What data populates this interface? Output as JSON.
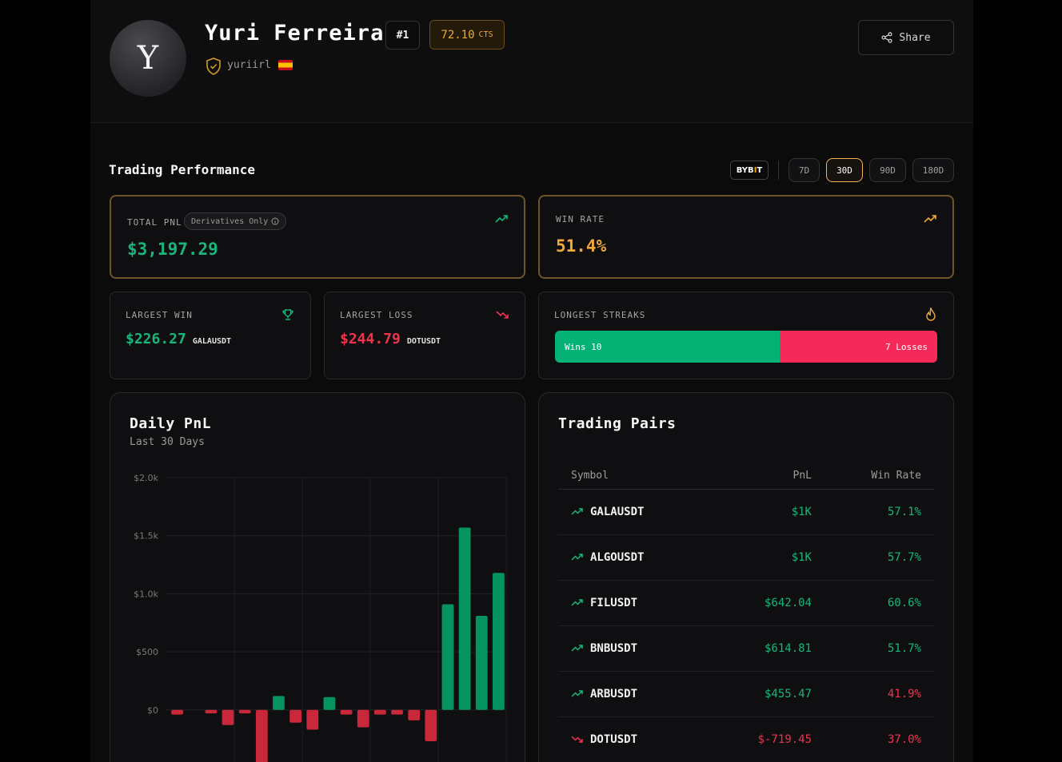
{
  "profile": {
    "avatar_letter": "Y",
    "name": "Yuri Ferreira",
    "rank": "#1",
    "cts_value": "72.10",
    "cts_unit": "CTS",
    "handle": "yuriirl",
    "share_label": "Share"
  },
  "performance": {
    "title": "Trading Performance",
    "exchange_logo": "BYBIT",
    "periods": [
      "7D",
      "30D",
      "90D",
      "180D"
    ],
    "active_period": "30D",
    "total_pnl": {
      "label": "TOTAL PNL",
      "badge": "Derivatives Only",
      "value": "$3,197.29"
    },
    "win_rate": {
      "label": "WIN RATE",
      "value": "51.4%"
    },
    "largest_win": {
      "label": "LARGEST WIN",
      "value": "$226.27",
      "symbol": "GALAUSDT"
    },
    "largest_loss": {
      "label": "LARGEST LOSS",
      "value": "$244.79",
      "symbol": "DOTUSDT"
    },
    "streaks": {
      "label": "LONGEST STREAKS",
      "wins_text": "Wins 10",
      "losses_text": "7 Losses",
      "wins": 10,
      "losses": 7
    }
  },
  "daily_pnl": {
    "title": "Daily PnL",
    "subtitle": "Last 30 Days"
  },
  "chart_data": {
    "type": "bar",
    "ylim": [
      -500,
      2000
    ],
    "yticks": [
      0,
      500,
      1000,
      1500,
      2000
    ],
    "ytick_labels": [
      "$0",
      "$500",
      "$1.0k",
      "$1.5k",
      "$2.0k"
    ],
    "values": [
      -40,
      0,
      -30,
      -130,
      -30,
      -490,
      120,
      -110,
      -170,
      110,
      -40,
      -150,
      -40,
      -40,
      -90,
      -270,
      910,
      1570,
      810,
      1180
    ],
    "colors": {
      "positive": "#05935f",
      "negative": "#c8283a"
    },
    "grid": true
  },
  "trading_pairs": {
    "title": "Trading Pairs",
    "headers": {
      "symbol": "Symbol",
      "pnl": "PnL",
      "win_rate": "Win Rate"
    },
    "rows": [
      {
        "symbol": "GALAUSDT",
        "pnl": "$1K",
        "win_rate": "57.1%",
        "dir": "up"
      },
      {
        "symbol": "ALGOUSDT",
        "pnl": "$1K",
        "win_rate": "57.7%",
        "dir": "up"
      },
      {
        "symbol": "FILUSDT",
        "pnl": "$642.04",
        "win_rate": "60.6%",
        "dir": "up"
      },
      {
        "symbol": "BNBUSDT",
        "pnl": "$614.81",
        "win_rate": "51.7%",
        "dir": "up"
      },
      {
        "symbol": "ARBUSDT",
        "pnl": "$455.47",
        "win_rate": "41.9%",
        "dir": "up"
      },
      {
        "symbol": "DOTUSDT",
        "pnl": "$-719.45",
        "win_rate": "37.0%",
        "dir": "down"
      }
    ]
  },
  "colors": {
    "accent_gold": "#f1a83a",
    "profit": "#19b57a",
    "loss": "#f0324f",
    "background": "#0b0b0c"
  }
}
